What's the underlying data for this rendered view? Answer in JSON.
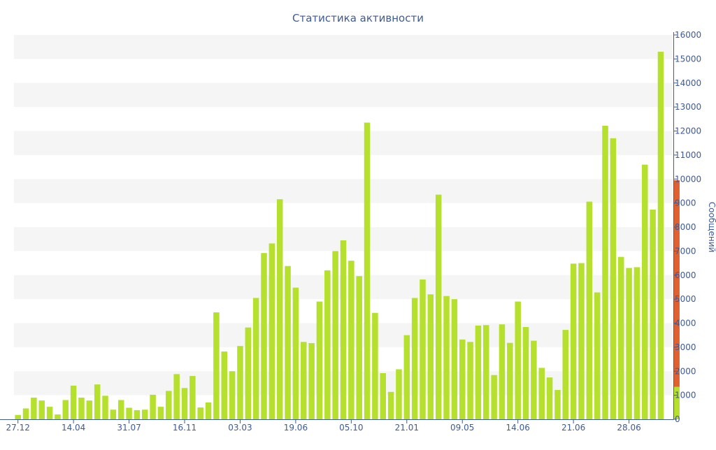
{
  "chart_data": {
    "type": "bar",
    "title": "Статистика активности",
    "xlabel": "",
    "ylabel": "Сообщений",
    "ylim": [
      0,
      16000
    ],
    "y_ticks": [
      0,
      1000,
      2000,
      3000,
      4000,
      5000,
      6000,
      7000,
      8000,
      9000,
      10000,
      11000,
      12000,
      13000,
      14000,
      15000,
      16000
    ],
    "y_axis_side": "right",
    "grid": "alternating horizontal bands",
    "x_tick_labels": [
      {
        "label": "27.12",
        "index": 0
      },
      {
        "label": "14.04",
        "index": 7
      },
      {
        "label": "31.07",
        "index": 14
      },
      {
        "label": "16.11",
        "index": 21
      },
      {
        "label": "03.03",
        "index": 28
      },
      {
        "label": "19.06",
        "index": 35
      },
      {
        "label": "05.10",
        "index": 42
      },
      {
        "label": "21.01",
        "index": 49
      },
      {
        "label": "09.05",
        "index": 56
      },
      {
        "label": "14.06",
        "index": 63
      },
      {
        "label": "21.06",
        "index": 70
      },
      {
        "label": "28.06",
        "index": 77
      }
    ],
    "values": [
      180,
      450,
      900,
      780,
      520,
      200,
      800,
      1400,
      900,
      780,
      1450,
      980,
      400,
      800,
      480,
      380,
      400,
      1020,
      520,
      1180,
      1880,
      1300,
      1800,
      490,
      700,
      4450,
      2820,
      2000,
      3050,
      3820,
      5050,
      6920,
      7320,
      9160,
      6380,
      5480,
      3220,
      3170,
      4900,
      6200,
      7000,
      7450,
      6600,
      5960,
      12350,
      4430,
      1920,
      1140,
      2080,
      3500,
      5050,
      5820,
      5200,
      9350,
      5130,
      5000,
      3320,
      3220,
      3900,
      3920,
      1840,
      3950,
      3180,
      4900,
      3840,
      3270,
      2140,
      1740,
      1220,
      3720,
      6480,
      6500,
      9060,
      5280,
      12220,
      11700,
      6760,
      6300,
      6330,
      10600,
      8730,
      15300,
      8640
    ],
    "last_bar": {
      "total": 9950,
      "highlight_value": 8600,
      "highlight_color": "#e06030"
    },
    "colors": {
      "bar": "#b5e02e",
      "highlight": "#e06030",
      "text": "#3d5a99",
      "band": "#f5f5f5"
    }
  }
}
